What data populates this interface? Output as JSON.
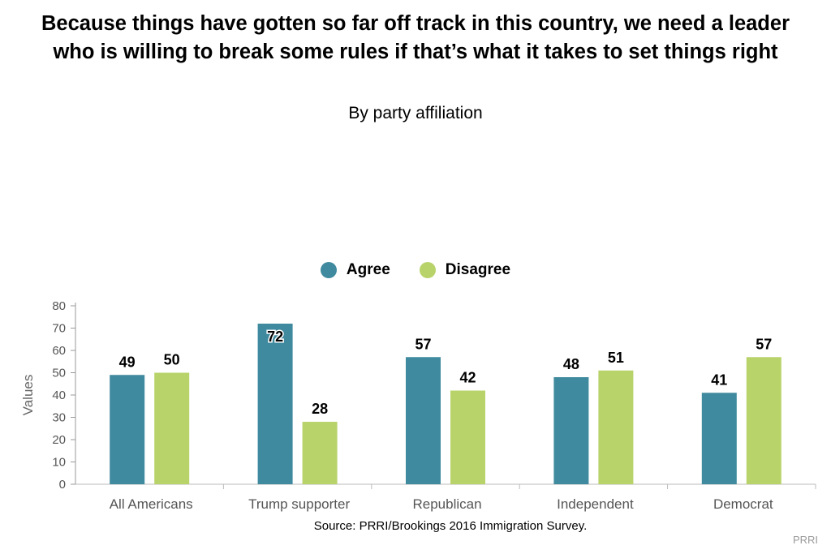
{
  "header": {
    "title": "Because things have gotten so far off track in this country, we need a leader who is willing to break some rules if that’s what it takes to set things right",
    "subtitle": "By party affiliation"
  },
  "footer": {
    "source": "Source: PRRI/Brookings 2016 Immigration Survey.",
    "credit": "PRRI"
  },
  "colors": {
    "agree": "#3f8a9e",
    "disagree": "#b9d36b"
  },
  "chart_data": {
    "type": "bar",
    "categories": [
      "All Americans",
      "Trump supporter",
      "Republican",
      "Independent",
      "Democrat"
    ],
    "series": [
      {
        "name": "Agree",
        "values": [
          49,
          72,
          57,
          48,
          41
        ]
      },
      {
        "name": "Disagree",
        "values": [
          50,
          28,
          42,
          51,
          57
        ]
      }
    ],
    "ylabel": "Values",
    "ylim": [
      0,
      80
    ],
    "yticks": [
      0,
      10,
      20,
      30,
      40,
      50,
      60,
      70,
      80
    ],
    "legend_position": "top-center",
    "grid": false
  }
}
